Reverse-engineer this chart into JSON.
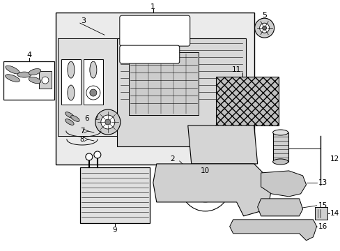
{
  "background_color": "#ffffff",
  "label_color": "#000000",
  "line_color": "#000000",
  "part_bg": "#e8e8e8",
  "diagram_lw": 0.6,
  "label_fs": 7.5
}
